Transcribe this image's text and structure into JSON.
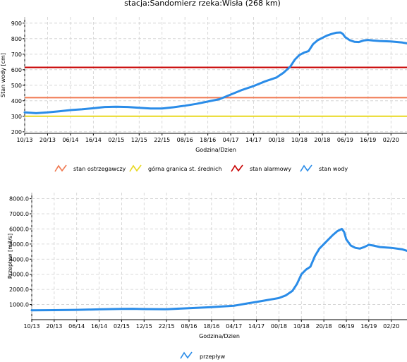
{
  "title": "stacja:Sandomierz    rzeka:Wisła (268 km)",
  "colors": {
    "warning": "#f07850",
    "medium_upper": "#e8d820",
    "alarm": "#c80000",
    "series": "#2a8ce8",
    "grid": "#cfcfcf"
  },
  "time_ticks": [
    "10/13",
    "20/13",
    "06/14",
    "16/14",
    "02/15",
    "12/15",
    "22/15",
    "08/16",
    "18/16",
    "04/17",
    "14/17",
    "00/18",
    "10/18",
    "20/18",
    "06/19",
    "16/19",
    "02/20"
  ],
  "chart_data": [
    {
      "type": "line",
      "xlabel": "Godzina/Dzien",
      "ylabel": "Stan wody [cm]",
      "ylim": [
        190,
        940
      ],
      "yticks": [
        200,
        300,
        400,
        500,
        600,
        700,
        800,
        900
      ],
      "xlim": [
        0,
        167
      ],
      "grid": true,
      "legend_position": "bottom",
      "legend": [
        "stan ostrzegawczy",
        "górna granica st. średnich",
        "stan alarmowy",
        "stan wody"
      ],
      "thresholds": [
        {
          "name": "stan ostrzegawczy",
          "value": 420
        },
        {
          "name": "górna granica st. średnich",
          "value": 300
        },
        {
          "name": "stan alarmowy",
          "value": 615
        }
      ],
      "series": [
        {
          "name": "stan wody",
          "x": [
            0,
            5,
            10,
            15,
            20,
            25,
            30,
            35,
            40,
            45,
            50,
            55,
            60,
            65,
            70,
            75,
            80,
            85,
            90,
            95,
            100,
            105,
            110,
            113,
            116,
            118,
            120,
            122,
            124,
            126,
            128,
            130,
            132,
            134,
            136,
            138,
            139,
            140,
            142,
            144,
            146,
            148,
            150,
            152,
            155,
            160,
            165,
            167
          ],
          "y": [
            325,
            320,
            325,
            332,
            340,
            345,
            352,
            360,
            362,
            360,
            355,
            350,
            350,
            358,
            368,
            380,
            395,
            410,
            440,
            470,
            495,
            525,
            550,
            580,
            620,
            665,
            695,
            710,
            720,
            765,
            790,
            805,
            820,
            830,
            838,
            840,
            830,
            810,
            790,
            780,
            778,
            788,
            792,
            788,
            785,
            782,
            775,
            770
          ]
        }
      ]
    },
    {
      "type": "line",
      "xlabel": "Godzina/Dzien",
      "ylabel": "Przepływ [m3/s]",
      "ylim": [
        0,
        8400
      ],
      "yticks": [
        "1000.0",
        "2000.0",
        "3000.0",
        "4000.0",
        "5000.0",
        "6000.0",
        "7000.0",
        "8000.0"
      ],
      "xlim": [
        0,
        167
      ],
      "grid": true,
      "legend_position": "bottom",
      "legend": [
        "przepływ"
      ],
      "series": [
        {
          "name": "przepływ",
          "x": [
            0,
            10,
            20,
            30,
            40,
            45,
            50,
            60,
            70,
            80,
            90,
            95,
            100,
            105,
            110,
            113,
            116,
            118,
            120,
            122,
            124,
            126,
            128,
            130,
            132,
            134,
            136,
            138,
            139,
            140,
            142,
            144,
            146,
            148,
            150,
            152,
            155,
            160,
            165,
            167
          ],
          "y": [
            620,
            630,
            650,
            680,
            710,
            720,
            700,
            690,
            760,
            830,
            920,
            1050,
            1170,
            1300,
            1430,
            1600,
            1900,
            2350,
            3000,
            3300,
            3500,
            4200,
            4700,
            5000,
            5300,
            5600,
            5850,
            6000,
            5800,
            5300,
            4900,
            4750,
            4700,
            4800,
            4950,
            4900,
            4800,
            4750,
            4650,
            4550
          ]
        }
      ]
    }
  ]
}
